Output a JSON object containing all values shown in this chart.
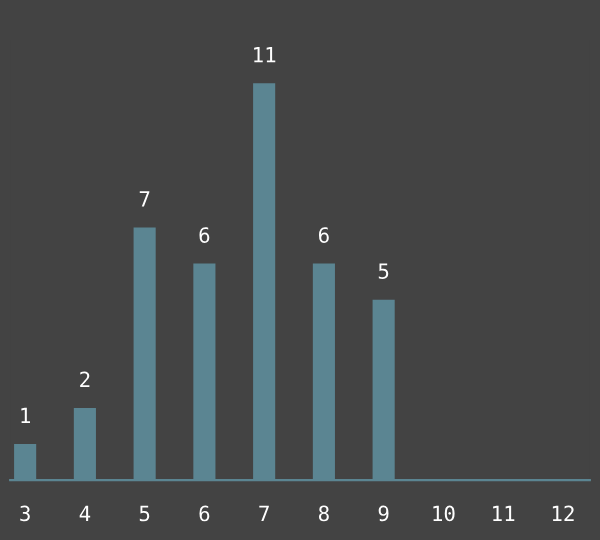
{
  "chart_data": {
    "type": "bar",
    "categories": [
      "3",
      "4",
      "5",
      "6",
      "7",
      "8",
      "9",
      "10",
      "11",
      "12"
    ],
    "values": [
      1,
      2,
      7,
      6,
      11,
      6,
      5,
      null,
      null,
      null
    ],
    "color": "#5b8592",
    "data_labels": true,
    "grid": false,
    "legend": false
  }
}
